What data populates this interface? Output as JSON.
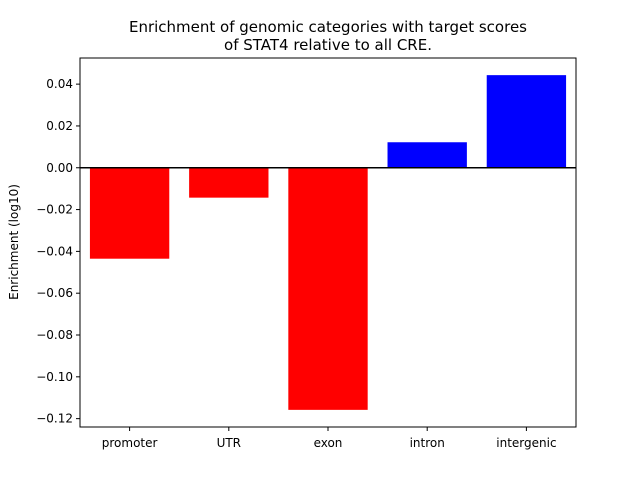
{
  "chart_data": {
    "type": "bar",
    "title_lines": [
      "Enrichment of genomic categories with target scores",
      "of STAT4 relative to all CRE."
    ],
    "xlabel": "",
    "ylabel": "Enrichment (log10)",
    "categories": [
      "promoter",
      "UTR",
      "exon",
      "intron",
      "intergenic"
    ],
    "values": [
      -0.0435,
      -0.0143,
      -0.1158,
      0.0122,
      0.0443
    ],
    "ylim": [
      -0.124,
      0.0525
    ],
    "yticks": [
      0.04,
      0.02,
      0.0,
      -0.02,
      -0.04,
      -0.06,
      -0.08,
      -0.1,
      -0.12
    ],
    "ytick_labels": [
      "0.04",
      "0.02",
      "0.00",
      "−0.02",
      "−0.04",
      "−0.06",
      "−0.08",
      "−0.10",
      "−0.12"
    ],
    "negative_color": "#ff0000",
    "positive_color": "#0000ff",
    "zero_line": true,
    "grid": false
  }
}
